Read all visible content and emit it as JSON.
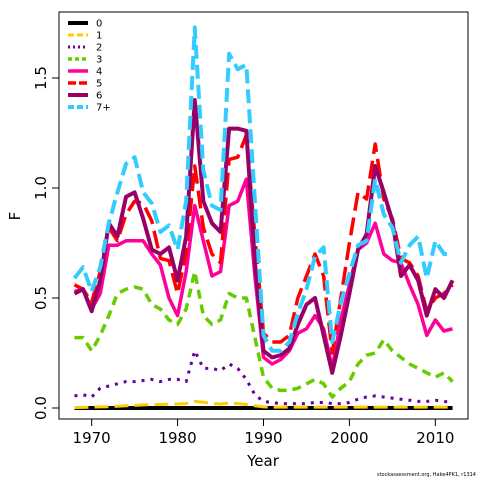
{
  "chart_data": {
    "type": "line",
    "xlabel": "Year",
    "ylabel": "F",
    "xlim": [
      1966.2,
      2013.8
    ],
    "ylim": [
      -0.05,
      1.8
    ],
    "x_ticks": [
      1970,
      1980,
      1990,
      2000,
      2010
    ],
    "y_ticks": [
      0.0,
      0.5,
      1.0,
      1.5
    ],
    "y_tick_labels": [
      "0.0",
      "0.5",
      "1.0",
      "1.5"
    ],
    "x": [
      1968,
      1969,
      1970,
      1971,
      1972,
      1973,
      1974,
      1975,
      1976,
      1977,
      1978,
      1979,
      1980,
      1981,
      1982,
      1983,
      1984,
      1985,
      1986,
      1987,
      1988,
      1989,
      1990,
      1991,
      1992,
      1993,
      1994,
      1995,
      1996,
      1997,
      1998,
      1999,
      2000,
      2001,
      2002,
      2003,
      2004,
      2005,
      2006,
      2007,
      2008,
      2009,
      2010,
      2011,
      2012
    ],
    "legend_position": "top-left",
    "series": [
      {
        "name": "0",
        "color": "#000000",
        "dash": "",
        "width": 4,
        "values": [
          0,
          0,
          0,
          0,
          0,
          0,
          0,
          0,
          0,
          0,
          0,
          0,
          0,
          0,
          0,
          0,
          0,
          0,
          0,
          0,
          0,
          0,
          0,
          0,
          0,
          0,
          0,
          0,
          0,
          0,
          0,
          0,
          0,
          0,
          0,
          0,
          0,
          0,
          0,
          0,
          0,
          0,
          0,
          0,
          0
        ]
      },
      {
        "name": "1",
        "color": "#ffcc00",
        "dash": "14,6",
        "width": 3,
        "values": [
          0.002,
          0.003,
          0.004,
          0.005,
          0.006,
          0.008,
          0.01,
          0.012,
          0.014,
          0.015,
          0.016,
          0.017,
          0.018,
          0.02,
          0.03,
          0.026,
          0.02,
          0.018,
          0.022,
          0.02,
          0.016,
          0.01,
          0.005,
          0.004,
          0.004,
          0.004,
          0.004,
          0.004,
          0.004,
          0.004,
          0.004,
          0.004,
          0.004,
          0.004,
          0.004,
          0.004,
          0.004,
          0.004,
          0.004,
          0.004,
          0.004,
          0.004,
          0.004,
          0.004,
          0.004
        ]
      },
      {
        "name": "2",
        "color": "#660099",
        "dash": "3,6",
        "width": 3,
        "values": [
          0.055,
          0.06,
          0.05,
          0.09,
          0.1,
          0.11,
          0.12,
          0.12,
          0.125,
          0.13,
          0.12,
          0.13,
          0.13,
          0.12,
          0.26,
          0.18,
          0.18,
          0.17,
          0.2,
          0.18,
          0.13,
          0.06,
          0.03,
          0.025,
          0.02,
          0.02,
          0.02,
          0.02,
          0.025,
          0.025,
          0.02,
          0.02,
          0.025,
          0.04,
          0.05,
          0.055,
          0.05,
          0.045,
          0.04,
          0.035,
          0.03,
          0.03,
          0.035,
          0.03,
          0.025
        ]
      },
      {
        "name": "3",
        "color": "#66cc00",
        "dash": "9,6",
        "width": 3.5,
        "values": [
          0.32,
          0.32,
          0.26,
          0.33,
          0.42,
          0.52,
          0.54,
          0.55,
          0.54,
          0.47,
          0.45,
          0.4,
          0.38,
          0.45,
          0.62,
          0.42,
          0.38,
          0.4,
          0.52,
          0.5,
          0.5,
          0.32,
          0.14,
          0.09,
          0.08,
          0.08,
          0.09,
          0.11,
          0.13,
          0.11,
          0.05,
          0.09,
          0.12,
          0.2,
          0.24,
          0.25,
          0.31,
          0.26,
          0.23,
          0.2,
          0.18,
          0.16,
          0.14,
          0.16,
          0.12
        ]
      },
      {
        "name": "4",
        "color": "#ff0099",
        "dash": "",
        "width": 3.5,
        "values": [
          0.53,
          0.54,
          0.45,
          0.52,
          0.74,
          0.74,
          0.76,
          0.76,
          0.76,
          0.7,
          0.65,
          0.5,
          0.42,
          0.62,
          0.92,
          0.76,
          0.6,
          0.62,
          0.92,
          0.94,
          1.04,
          0.6,
          0.23,
          0.2,
          0.22,
          0.26,
          0.34,
          0.36,
          0.42,
          0.36,
          0.18,
          0.4,
          0.56,
          0.72,
          0.75,
          0.84,
          0.7,
          0.67,
          0.66,
          0.56,
          0.47,
          0.33,
          0.4,
          0.35,
          0.36
        ]
      },
      {
        "name": "5",
        "color": "#ff0000",
        "dash": "18,7",
        "width": 3.5,
        "values": [
          0.56,
          0.54,
          0.48,
          0.62,
          0.82,
          0.76,
          0.88,
          0.94,
          0.93,
          0.85,
          0.68,
          0.67,
          0.52,
          0.71,
          1.1,
          0.82,
          0.7,
          0.66,
          1.13,
          1.14,
          1.24,
          0.78,
          0.34,
          0.3,
          0.3,
          0.33,
          0.5,
          0.6,
          0.7,
          0.6,
          0.25,
          0.5,
          0.75,
          0.98,
          0.95,
          1.2,
          0.95,
          0.86,
          0.68,
          0.66,
          0.6,
          0.44,
          0.5,
          0.52,
          0.56
        ]
      },
      {
        "name": "6",
        "color": "#990066",
        "dash": "",
        "width": 4,
        "values": [
          0.52,
          0.54,
          0.44,
          0.58,
          0.84,
          0.78,
          0.96,
          0.98,
          0.86,
          0.72,
          0.7,
          0.73,
          0.58,
          0.78,
          1.4,
          0.94,
          0.84,
          0.8,
          1.27,
          1.27,
          1.26,
          0.66,
          0.26,
          0.23,
          0.24,
          0.27,
          0.38,
          0.47,
          0.5,
          0.33,
          0.16,
          0.33,
          0.52,
          0.72,
          0.79,
          1.1,
          0.98,
          0.85,
          0.6,
          0.65,
          0.58,
          0.42,
          0.54,
          0.5,
          0.58
        ]
      },
      {
        "name": "7+",
        "color": "#33ccff",
        "dash": "14,6",
        "width": 4,
        "values": [
          0.59,
          0.64,
          0.53,
          0.64,
          0.84,
          0.98,
          1.11,
          1.14,
          0.98,
          0.93,
          0.8,
          0.83,
          0.72,
          0.94,
          1.73,
          1.08,
          0.92,
          0.9,
          1.61,
          1.54,
          1.56,
          0.94,
          0.33,
          0.26,
          0.26,
          0.3,
          0.43,
          0.54,
          0.69,
          0.73,
          0.3,
          0.48,
          0.61,
          0.74,
          0.76,
          1.04,
          0.88,
          0.82,
          0.66,
          0.74,
          0.78,
          0.59,
          0.76,
          0.7,
          0.7
        ]
      }
    ]
  },
  "credit_text": "stockassessment.org, Hake4PK1, r1314"
}
